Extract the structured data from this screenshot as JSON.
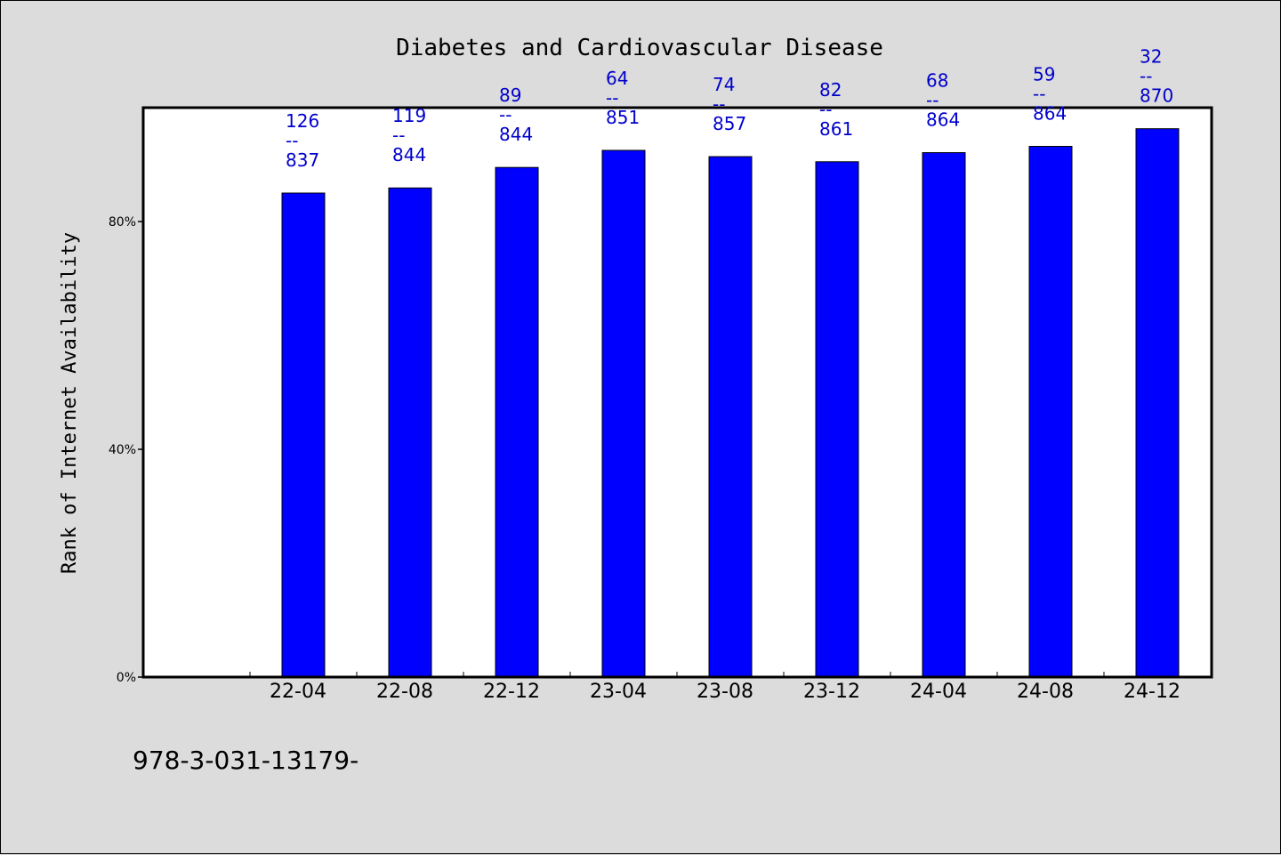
{
  "chart_data": {
    "type": "bar",
    "title": "Diabetes and Cardiovascular Disease",
    "xlabel": "",
    "ylabel": "Rank of Internet Availability",
    "categories": [
      "22-04",
      "22-08",
      "22-12",
      "23-04",
      "23-08",
      "23-12",
      "24-04",
      "24-08",
      "24-12"
    ],
    "values": [
      85.0,
      85.9,
      89.5,
      92.5,
      91.4,
      90.5,
      92.1,
      93.2,
      96.3
    ],
    "data_labels": [
      [
        "126",
        "--",
        "837"
      ],
      [
        "119",
        "--",
        "844"
      ],
      [
        "89",
        "--",
        "844"
      ],
      [
        "64",
        "--",
        "851"
      ],
      [
        "74",
        "--",
        "857"
      ],
      [
        "82",
        "--",
        "861"
      ],
      [
        "68",
        "--",
        "864"
      ],
      [
        "59",
        "--",
        "864"
      ],
      [
        "32",
        "--",
        "870"
      ]
    ],
    "yticks": [
      0,
      40,
      80
    ],
    "ytick_labels": [
      "0%",
      "40%",
      "80%"
    ],
    "ylim": [
      0,
      100
    ],
    "grid": false,
    "legend": "none",
    "colors": {
      "bar": "#0000ff",
      "label": "#0000cc",
      "background": "#dcdcdc",
      "plot": "#ffffff"
    }
  },
  "footnote": "978-3-031-13179-"
}
